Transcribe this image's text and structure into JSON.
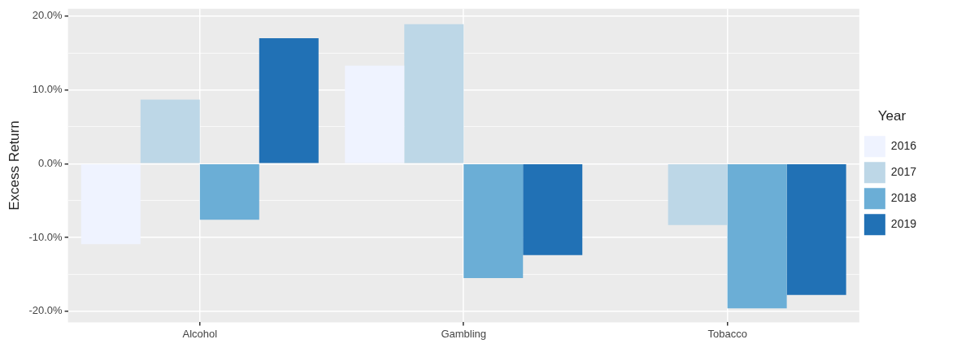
{
  "chart_data": {
    "type": "bar",
    "ylabel": "Excess Return",
    "legend_title": "Year",
    "categories": [
      "Alcohol",
      "Gambling",
      "Tobacco"
    ],
    "series": [
      {
        "name": "2016",
        "color": "#eff3ff",
        "values": [
          -10.9,
          13.3,
          -0.1
        ]
      },
      {
        "name": "2017",
        "color": "#bdd7e7",
        "values": [
          8.7,
          18.9,
          -8.3
        ]
      },
      {
        "name": "2018",
        "color": "#6baed6",
        "values": [
          -7.6,
          -15.5,
          -19.6
        ]
      },
      {
        "name": "2019",
        "color": "#2171b5",
        "values": [
          17.0,
          -12.4,
          -17.8
        ]
      }
    ],
    "ylim": [
      -21.5,
      21.0
    ],
    "yticks": [
      {
        "value": -20,
        "label": "-20.0%"
      },
      {
        "value": -15,
        "label": null
      },
      {
        "value": -10,
        "label": "-10.0%"
      },
      {
        "value": -5,
        "label": null
      },
      {
        "value": 0,
        "label": "0.0%"
      },
      {
        "value": 5,
        "label": null
      },
      {
        "value": 10,
        "label": "10.0%"
      },
      {
        "value": 15,
        "label": null
      },
      {
        "value": 20,
        "label": "20.0%"
      }
    ],
    "grid": true,
    "legend": "right"
  }
}
